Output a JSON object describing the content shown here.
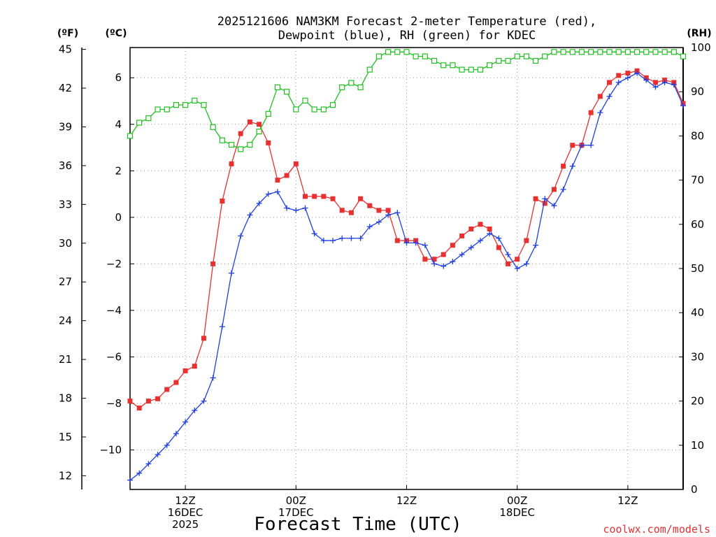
{
  "chart_data": {
    "type": "line",
    "title_line1": "2025121606 NAM3KM Forecast 2-meter Temperature (red),",
    "title_line2": "Dewpoint (blue), RH (green) for KDEC",
    "xlabel": "Forecast Time (UTC)",
    "credit": "coolwx.com/models",
    "unit_f": "(ºF)",
    "unit_c": "(ºC)",
    "unit_rh": "(RH)",
    "x_start_hour": 6,
    "x_end_hour": 66,
    "xlim": [
      6,
      66
    ],
    "c_lim": [
      -11.7,
      7.3
    ],
    "rh_lim": [
      0,
      100
    ],
    "c_ticks": [
      "6",
      "4",
      "2",
      "0",
      "-2",
      "-4",
      "-6",
      "-8",
      "-10"
    ],
    "f_ticks": [
      "45",
      "42",
      "39",
      "36",
      "33",
      "30",
      "27",
      "24",
      "21",
      "18",
      "15",
      "12"
    ],
    "rh_ticks": [
      "100",
      "90",
      "80",
      "70",
      "60",
      "50",
      "40",
      "30",
      "20",
      "10",
      "0"
    ],
    "x_ticks": [
      {
        "hour": 12,
        "line1": "12Z",
        "line2": "16DEC",
        "line3": "2025"
      },
      {
        "hour": 24,
        "line1": "00Z",
        "line2": "17DEC",
        "line3": ""
      },
      {
        "hour": 36,
        "line1": "12Z",
        "line2": "",
        "line3": ""
      },
      {
        "hour": 48,
        "line1": "00Z",
        "line2": "18DEC",
        "line3": ""
      },
      {
        "hour": 60,
        "line1": "12Z",
        "line2": "",
        "line3": ""
      }
    ],
    "series": [
      {
        "name": "Temperature",
        "color": "#e83030",
        "marker": "filled-square",
        "axis": "celsius",
        "values": [
          -7.9,
          -8.2,
          -7.9,
          -7.8,
          -7.4,
          -7.1,
          -6.6,
          -6.4,
          -5.2,
          -2.0,
          0.7,
          2.3,
          3.6,
          4.1,
          4.0,
          3.2,
          1.6,
          1.8,
          2.3,
          0.9,
          0.9,
          0.9,
          0.8,
          0.3,
          0.2,
          0.8,
          0.5,
          0.3,
          0.3,
          -1.0,
          -1.0,
          -1.0,
          -1.8,
          -1.8,
          -1.6,
          -1.2,
          -0.8,
          -0.5,
          -0.3,
          -0.5,
          -1.3,
          -2.0,
          -1.8,
          -1.0,
          0.8,
          0.6,
          1.2,
          2.2,
          3.1,
          3.1,
          4.5,
          5.2,
          5.8,
          6.1,
          6.2,
          6.3,
          6.0,
          5.8,
          5.9,
          5.8,
          4.9
        ]
      },
      {
        "name": "Dewpoint",
        "color": "#2040e0",
        "marker": "plus",
        "axis": "celsius",
        "values": [
          -11.3,
          -11.0,
          -10.6,
          -10.2,
          -9.8,
          -9.3,
          -8.8,
          -8.3,
          -7.9,
          -6.9,
          -4.7,
          -2.4,
          -0.8,
          0.1,
          0.6,
          1.0,
          1.1,
          0.4,
          0.3,
          0.4,
          -0.7,
          -1.0,
          -1.0,
          -0.9,
          -0.9,
          -0.9,
          -0.4,
          -0.2,
          0.1,
          0.2,
          -1.1,
          -1.1,
          -1.2,
          -2.0,
          -2.1,
          -1.9,
          -1.6,
          -1.3,
          -1.0,
          -0.7,
          -0.9,
          -1.6,
          -2.2,
          -2.0,
          -1.2,
          0.8,
          0.5,
          1.2,
          2.2,
          3.1,
          3.1,
          4.5,
          5.2,
          5.8,
          6.0,
          6.2,
          5.9,
          5.6,
          5.8,
          5.7,
          4.8
        ]
      },
      {
        "name": "RH",
        "color": "#20c020",
        "marker": "open-square",
        "axis": "rh",
        "values": [
          80,
          83,
          84,
          86,
          86,
          87,
          87,
          88,
          87,
          82,
          79,
          78,
          77,
          78,
          81,
          85,
          91,
          90,
          86,
          88,
          86,
          86,
          87,
          91,
          92,
          91,
          95,
          98,
          99,
          99,
          99,
          98,
          98,
          97,
          96,
          96,
          95,
          95,
          95,
          96,
          97,
          97,
          98,
          98,
          97,
          98,
          99,
          99,
          99,
          99,
          99,
          99,
          99,
          99,
          99,
          99,
          99,
          99,
          99,
          99,
          98
        ]
      }
    ]
  }
}
